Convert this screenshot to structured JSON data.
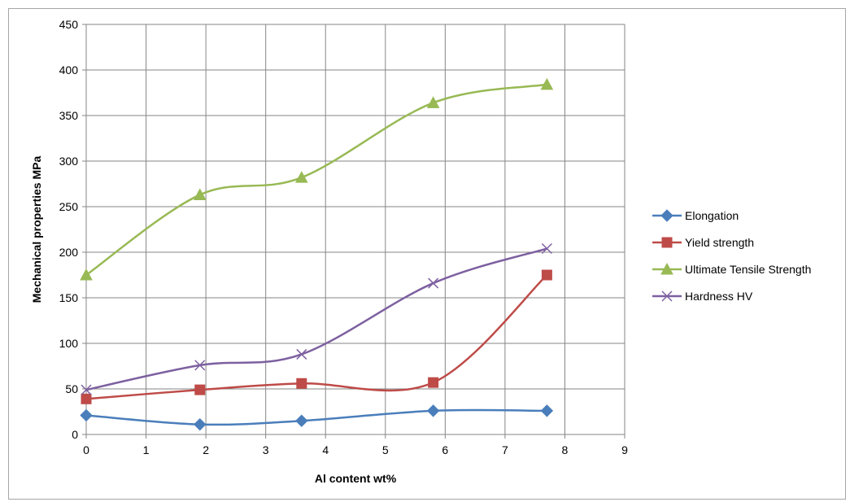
{
  "chart_data": {
    "type": "scatter",
    "title": "",
    "xlabel": "Al content wt%",
    "ylabel": "Mechanical properties MPa",
    "xlim": [
      0,
      9
    ],
    "ylim": [
      0,
      450
    ],
    "xticks": [
      0,
      1,
      2,
      3,
      4,
      5,
      6,
      7,
      8,
      9
    ],
    "yticks": [
      0,
      50,
      100,
      150,
      200,
      250,
      300,
      350,
      400,
      450
    ],
    "grid": true,
    "smooth_lines": true,
    "legend_position": "right",
    "series": [
      {
        "name": "Elongation",
        "color": "#4a7ebb",
        "marker": "diamond",
        "x": [
          0,
          1.9,
          3.6,
          5.8,
          7.7
        ],
        "y": [
          21,
          11,
          15,
          26,
          26
        ]
      },
      {
        "name": "Yield strength",
        "color": "#be4b48",
        "marker": "square",
        "x": [
          0,
          1.9,
          3.6,
          5.8,
          7.7
        ],
        "y": [
          39,
          49,
          56,
          57,
          175
        ]
      },
      {
        "name": "Ultimate Tensile Strength",
        "color": "#98b954",
        "marker": "triangle",
        "x": [
          0,
          1.9,
          3.6,
          5.8,
          7.7
        ],
        "y": [
          175,
          263,
          282,
          364,
          384
        ]
      },
      {
        "name": "Hardness HV",
        "color": "#7d60a0",
        "marker": "x",
        "x": [
          0,
          1.9,
          3.6,
          5.8,
          7.7
        ],
        "y": [
          49,
          76,
          88,
          166,
          204
        ]
      }
    ]
  }
}
